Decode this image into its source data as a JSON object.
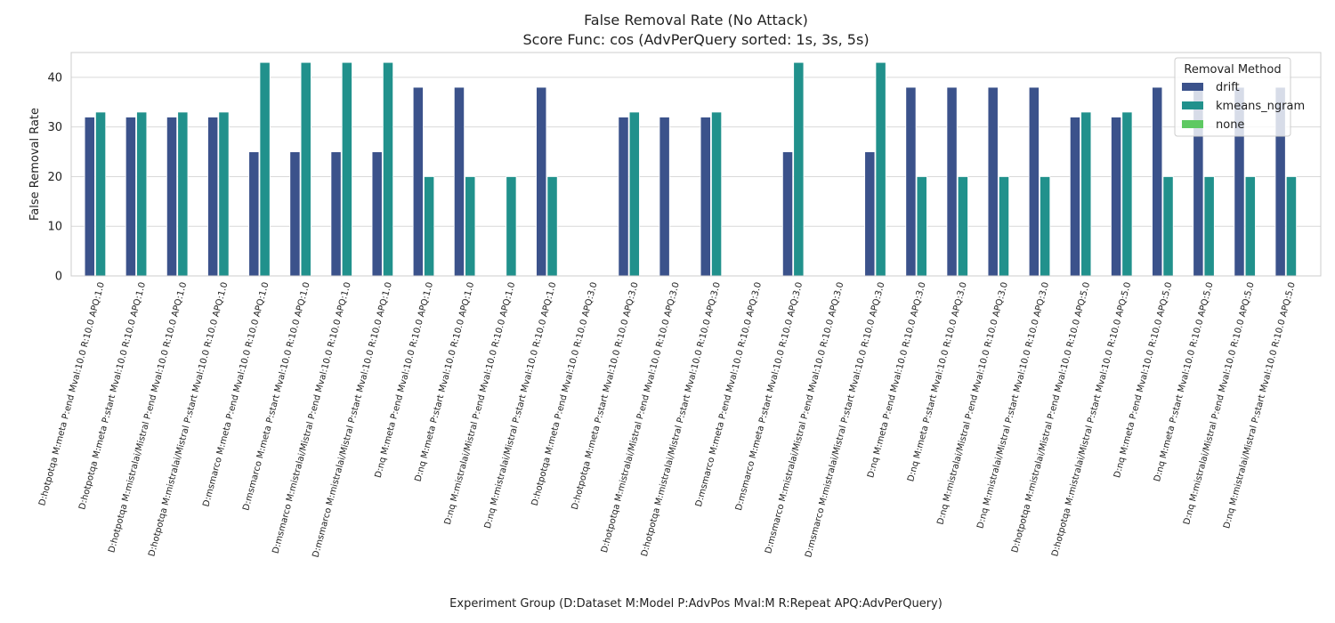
{
  "chart_data": {
    "type": "bar",
    "title": "False Removal Rate (No Attack)",
    "subtitle": "Score Func: cos (AdvPerQuery sorted: 1s, 3s, 5s)",
    "xlabel": "Experiment Group (D:Dataset M:Model P:AdvPos Mval:M R:Repeat APQ:AdvPerQuery)",
    "ylabel": "False Removal Rate",
    "ylim": [
      0,
      45
    ],
    "yticks": [
      0,
      10,
      20,
      30,
      40
    ],
    "grid": true,
    "legend": {
      "title": "Removal Method",
      "placement": "top-right"
    },
    "categories": [
      "D:hotpotqa M:meta P:end Mval:10.0 R:10.0 APQ:1.0",
      "D:hotpotqa M:meta P:start Mval:10.0 R:10.0 APQ:1.0",
      "D:hotpotqa M:mistralai/Mistral P:end Mval:10.0 R:10.0 APQ:1.0",
      "D:hotpotqa M:mistralai/Mistral P:start Mval:10.0 R:10.0 APQ:1.0",
      "D:msmarco M:meta P:end Mval:10.0 R:10.0 APQ:1.0",
      "D:msmarco M:meta P:start Mval:10.0 R:10.0 APQ:1.0",
      "D:msmarco M:mistralai/Mistral P:end Mval:10.0 R:10.0 APQ:1.0",
      "D:msmarco M:mistralai/Mistral P:start Mval:10.0 R:10.0 APQ:1.0",
      "D:nq M:meta P:end Mval:10.0 R:10.0 APQ:1.0",
      "D:nq M:meta P:start Mval:10.0 R:10.0 APQ:1.0",
      "D:nq M:mistralai/Mistral P:end Mval:10.0 R:10.0 APQ:1.0",
      "D:nq M:mistralai/Mistral P:start Mval:10.0 R:10.0 APQ:1.0",
      "D:hotpotqa M:meta P:end Mval:10.0 R:10.0 APQ:3.0",
      "D:hotpotqa M:meta P:start Mval:10.0 R:10.0 APQ:3.0",
      "D:hotpotqa M:mistralai/Mistral P:end Mval:10.0 R:10.0 APQ:3.0",
      "D:hotpotqa M:mistralai/Mistral P:start Mval:10.0 R:10.0 APQ:3.0",
      "D:msmarco M:meta P:end Mval:10.0 R:10.0 APQ:3.0",
      "D:msmarco M:meta P:start Mval:10.0 R:10.0 APQ:3.0",
      "D:msmarco M:mistralai/Mistral P:end Mval:10.0 R:10.0 APQ:3.0",
      "D:msmarco M:mistralai/Mistral P:start Mval:10.0 R:10.0 APQ:3.0",
      "D:nq M:meta P:end Mval:10.0 R:10.0 APQ:3.0",
      "D:nq M:meta P:start Mval:10.0 R:10.0 APQ:3.0",
      "D:nq M:mistralai/Mistral P:end Mval:10.0 R:10.0 APQ:3.0",
      "D:nq M:mistralai/Mistral P:start Mval:10.0 R:10.0 APQ:3.0",
      "D:hotpotqa M:mistralai/Mistral P:end Mval:10.0 R:10.0 APQ:5.0",
      "D:hotpotqa M:mistralai/Mistral P:start Mval:10.0 R:10.0 APQ:5.0",
      "D:nq M:meta P:end Mval:10.0 R:10.0 APQ:5.0",
      "D:nq M:meta P:start Mval:10.0 R:10.0 APQ:5.0",
      "D:nq M:mistralai/Mistral P:end Mval:10.0 R:10.0 APQ:5.0",
      "D:nq M:mistralai/Mistral P:start Mval:10.0 R:10.0 APQ:5.0"
    ],
    "series": [
      {
        "name": "drift",
        "color": "#3b528b",
        "values": [
          32,
          32,
          32,
          32,
          25,
          25,
          25,
          25,
          38,
          38,
          0,
          38,
          0,
          32,
          32,
          32,
          0,
          25,
          0,
          25,
          38,
          38,
          38,
          38,
          32,
          32,
          38,
          38,
          38,
          38
        ]
      },
      {
        "name": "kmeans_ngram",
        "color": "#21918c",
        "values": [
          33,
          33,
          33,
          33,
          43,
          43,
          43,
          43,
          20,
          20,
          20,
          20,
          0,
          33,
          0,
          33,
          0,
          43,
          0,
          43,
          20,
          20,
          20,
          20,
          33,
          33,
          20,
          20,
          20,
          20
        ]
      },
      {
        "name": "none",
        "color": "#5ec962",
        "values": [
          0,
          0,
          0,
          0,
          0,
          0,
          0,
          0,
          0,
          0,
          0,
          0,
          0,
          0,
          0,
          0,
          0,
          0,
          0,
          0,
          0,
          0,
          0,
          0,
          0,
          0,
          0,
          0,
          0,
          0
        ]
      }
    ]
  }
}
